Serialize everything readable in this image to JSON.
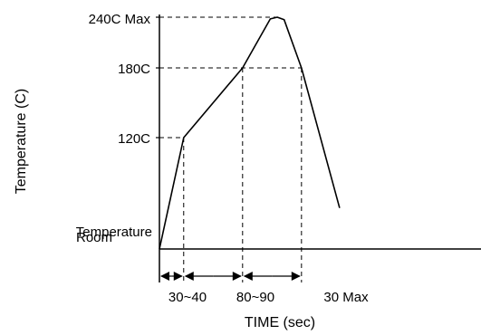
{
  "chart_data": {
    "type": "line",
    "xlabel": "TIME (sec)",
    "ylabel": "Temperature (C)",
    "grid": false,
    "y_tick_labels": [
      "Room",
      "Temperature",
      "120C",
      "180C",
      "240C Max"
    ],
    "x_interval_labels": [
      "30~40",
      "80~90",
      "30 Max"
    ],
    "y_levels": {
      "room": 25,
      "t120": 120,
      "t180": 180,
      "t240": 240
    },
    "ylim": [
      25,
      240
    ],
    "xlim": [
      0,
      340
    ],
    "series": [
      {
        "x": [
          0,
          35,
          120,
          160,
          170,
          180,
          205,
          260
        ],
        "y": [
          25,
          120,
          180,
          238,
          240,
          237,
          180,
          60
        ]
      }
    ],
    "guide_points": [
      {
        "x": 35,
        "y": 120
      },
      {
        "x": 120,
        "y": 180
      },
      {
        "x": 205,
        "y": 180
      },
      {
        "x": 170,
        "y": 240
      }
    ],
    "interval_boundaries": [
      0,
      35,
      120,
      205
    ]
  }
}
